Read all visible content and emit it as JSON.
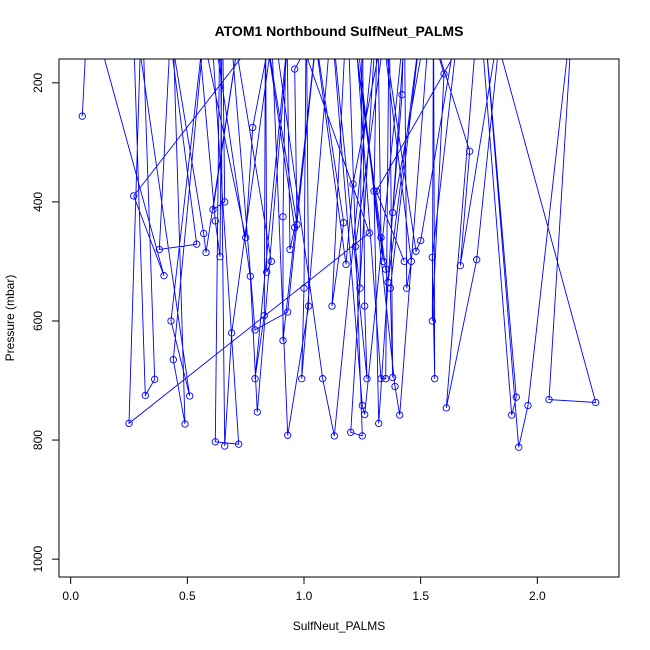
{
  "chart_data": {
    "type": "line",
    "title": "ATOM1 Northbound SulfNeut_PALMS",
    "xlabel": "SulfNeut_PALMS",
    "ylabel": "Pressure (mbar)",
    "xlim": [
      -0.05,
      2.35
    ],
    "ylim": [
      1030,
      160
    ],
    "y_reversed": true,
    "x_ticks": [
      {
        "v": 0,
        "label": "0.0"
      },
      {
        "v": 0.5,
        "label": "0.5"
      },
      {
        "v": 1.0,
        "label": "1.0"
      },
      {
        "v": 1.5,
        "label": "1.5"
      },
      {
        "v": 2.0,
        "label": "2.0"
      }
    ],
    "y_ticks": [
      {
        "v": 200,
        "label": "200"
      },
      {
        "v": 400,
        "label": "400"
      },
      {
        "v": 600,
        "label": "600"
      },
      {
        "v": 800,
        "label": "800"
      },
      {
        "v": 1000,
        "label": "1000"
      }
    ],
    "grid": false,
    "series": [
      {
        "color": "#0000ff",
        "marker": "open-circle",
        "points": [
          [
            0.05,
            256
          ],
          [
            0.4,
            524
          ],
          [
            0.27,
            390
          ],
          [
            1.28,
            452
          ],
          [
            0.25,
            772
          ],
          [
            0.36,
            698
          ],
          [
            0.32,
            725
          ],
          [
            0.51,
            726
          ],
          [
            0.43,
            600
          ],
          [
            0.44,
            665
          ],
          [
            0.49,
            773
          ],
          [
            0.38,
            480
          ],
          [
            0.54,
            471
          ],
          [
            0.57,
            453
          ],
          [
            0.58,
            485
          ],
          [
            0.61,
            413
          ],
          [
            0.66,
            400
          ],
          [
            0.64,
            492
          ],
          [
            0.62,
            432
          ],
          [
            0.75,
            460
          ],
          [
            0.78,
            275
          ],
          [
            0.69,
            620
          ],
          [
            0.66,
            810
          ],
          [
            0.62,
            803
          ],
          [
            0.72,
            807
          ],
          [
            0.77,
            525
          ],
          [
            0.8,
            753
          ],
          [
            0.79,
            697
          ],
          [
            0.83,
            591
          ],
          [
            0.84,
            518
          ],
          [
            0.86,
            500
          ],
          [
            0.79,
            615
          ],
          [
            0.93,
            585
          ],
          [
            0.91,
            633
          ],
          [
            0.91,
            425
          ],
          [
            0.94,
            480
          ],
          [
            0.96,
            443
          ],
          [
            0.97,
            438
          ],
          [
            0.96,
            177
          ],
          [
            0.99,
            697
          ],
          [
            1.0,
            545
          ],
          [
            1.02,
            575
          ],
          [
            0.93,
            792
          ],
          [
            1.08,
            697
          ],
          [
            1.13,
            793
          ],
          [
            1.2,
            787
          ],
          [
            1.25,
            793
          ],
          [
            1.12,
            575
          ],
          [
            1.17,
            435
          ],
          [
            1.18,
            505
          ],
          [
            1.21,
            370
          ],
          [
            1.22,
            475
          ],
          [
            1.24,
            545
          ],
          [
            1.26,
            575
          ],
          [
            1.27,
            697
          ],
          [
            1.25,
            742
          ],
          [
            1.26,
            757
          ],
          [
            1.32,
            772
          ],
          [
            1.3,
            382
          ],
          [
            1.33,
            460
          ],
          [
            1.34,
            500
          ],
          [
            1.35,
            513
          ],
          [
            1.36,
            535
          ],
          [
            1.37,
            545
          ],
          [
            1.38,
            695
          ],
          [
            1.35,
            697
          ],
          [
            1.33,
            697
          ],
          [
            1.39,
            710
          ],
          [
            1.41,
            758
          ],
          [
            1.38,
            418
          ],
          [
            1.42,
            220
          ],
          [
            1.44,
            545
          ],
          [
            1.46,
            500
          ],
          [
            1.48,
            483
          ],
          [
            1.5,
            465
          ],
          [
            1.55,
            493
          ],
          [
            1.56,
            697
          ],
          [
            1.55,
            600
          ],
          [
            1.6,
            185
          ],
          [
            1.71,
            315
          ],
          [
            1.67,
            507
          ],
          [
            1.74,
            497
          ],
          [
            1.61,
            746
          ],
          [
            1.89,
            758
          ],
          [
            1.91,
            728
          ],
          [
            1.92,
            812
          ],
          [
            1.96,
            742
          ],
          [
            2.05,
            732
          ],
          [
            2.25,
            737
          ],
          [
            1.31,
            382
          ],
          [
            1.43,
            500
          ]
        ],
        "offscreen_top_pressure": 60
      }
    ]
  }
}
